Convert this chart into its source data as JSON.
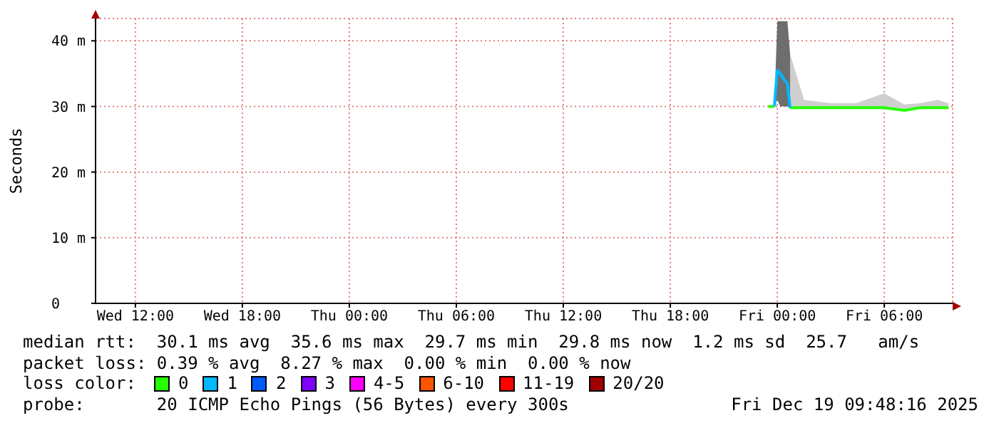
{
  "chart_data": {
    "type": "line",
    "ylabel": "Seconds",
    "xlim": [
      "2025-12-17T09:46",
      "2025-12-19T09:50"
    ],
    "xticks": [
      {
        "value": "2025-12-17T12:00",
        "label": "Wed 12:00"
      },
      {
        "value": "2025-12-17T18:00",
        "label": "Wed 18:00"
      },
      {
        "value": "2025-12-18T00:00",
        "label": "Thu 00:00"
      },
      {
        "value": "2025-12-18T06:00",
        "label": "Thu 06:00"
      },
      {
        "value": "2025-12-18T12:00",
        "label": "Thu 12:00"
      },
      {
        "value": "2025-12-18T18:00",
        "label": "Thu 18:00"
      },
      {
        "value": "2025-12-19T00:00",
        "label": "Fri 00:00"
      },
      {
        "value": "2025-12-19T06:00",
        "label": "Fri 06:00"
      }
    ],
    "ylim": [
      0,
      43.4
    ],
    "yticks": [
      0,
      {
        "value": 10,
        "label": "10 m"
      },
      {
        "value": 20,
        "label": "20 m"
      },
      {
        "value": 30,
        "label": "30 m"
      },
      {
        "value": 40,
        "label": "40 m"
      }
    ],
    "grid": true,
    "legend": "bottom",
    "legend_title": "loss color:",
    "series": [
      {
        "name": "0",
        "color": "#26ff00",
        "x": [
          "2025-12-18T23:30",
          "2025-12-18T23:50",
          "2025-12-19T00:18",
          "2025-12-19T00:43",
          "2025-12-19T01:30",
          "2025-12-19T03:00",
          "2025-12-19T04:24",
          "2025-12-19T06:00",
          "2025-12-19T07:07",
          "2025-12-19T08:00",
          "2025-12-19T09:00",
          "2025-12-19T09:36"
        ],
        "values": [
          30,
          30,
          null,
          29.8,
          29.8,
          29.8,
          29.8,
          29.8,
          29.4,
          29.8,
          29.8,
          29.8
        ],
        "lower": [
          null,
          null,
          null,
          29.7,
          29.7,
          29.7,
          29.7,
          29.7,
          29.3,
          29.7,
          29.7,
          29.7
        ],
        "upper": [
          null,
          null,
          null,
          38,
          31,
          30.5,
          30.5,
          32,
          30.3,
          30.5,
          31,
          30.5
        ]
      },
      {
        "name": "1",
        "color": "#00b8ff",
        "x": [
          "2025-12-18T23:50",
          "2025-12-19T00:00",
          "2025-12-19T00:10",
          "2025-12-19T00:24",
          "2025-12-19T00:34",
          "2025-12-19T00:43"
        ],
        "values": [
          30,
          35.5,
          35,
          34,
          33.5,
          29.8
        ],
        "lower": [
          30,
          31,
          30,
          30,
          30,
          29.7
        ],
        "upper": [
          30,
          43,
          43,
          43,
          43,
          38
        ]
      },
      {
        "name": "2",
        "color": "#0059ff"
      },
      {
        "name": "3",
        "color": "#7e00ff"
      },
      {
        "name": "4-5",
        "color": "#ff00ff"
      },
      {
        "name": "6-10",
        "color": "#ff5500"
      },
      {
        "name": "11-19",
        "color": "#ff0000"
      },
      {
        "name": "20/20",
        "color": "#a10000"
      }
    ],
    "annotations": [
      "median rtt:  30.1 ms avg  35.6 ms max  29.7 ms min  29.8 ms now  1.2 ms sd  25.7   am/s",
      "packet loss: 0.39 % avg  8.27 % max  0.00 % min  0.00 % now",
      "probe:       20 ICMP Echo Pings (56 Bytes) every 300s",
      "Fri Dec 19 09:48:16 2025"
    ]
  }
}
